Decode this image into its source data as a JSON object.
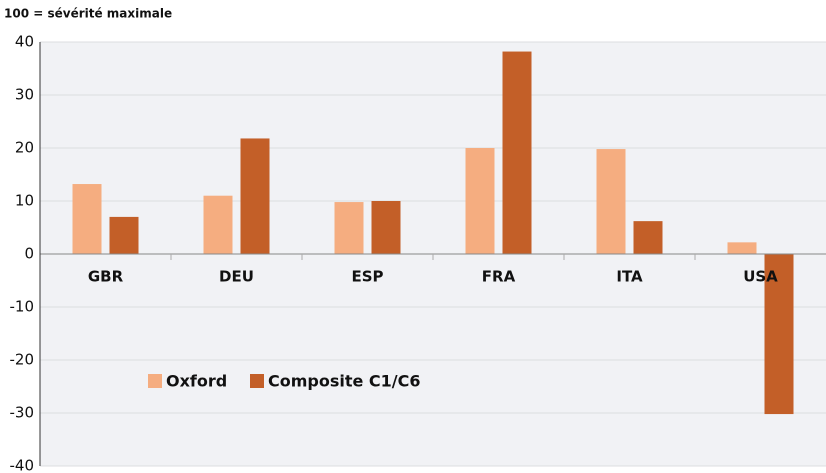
{
  "chart_data": {
    "type": "bar",
    "subtitle": "100 = sévérité maximale",
    "categories": [
      "GBR",
      "DEU",
      "ESP",
      "FRA",
      "ITA",
      "USA"
    ],
    "series": [
      {
        "name": "Oxford",
        "color": "#f5ad80",
        "values": [
          13.2,
          11,
          9.8,
          20,
          19.8,
          2.2
        ]
      },
      {
        "name": "Composite C1/C6",
        "color": "#c35f28",
        "values": [
          7,
          21.8,
          10,
          38.2,
          6.2,
          -30.2
        ]
      }
    ],
    "ylim": [
      -40,
      40
    ],
    "yticks": [
      -40,
      -30,
      -20,
      -10,
      0,
      10,
      20,
      30,
      40
    ],
    "grid": true,
    "legend": "lower left"
  }
}
